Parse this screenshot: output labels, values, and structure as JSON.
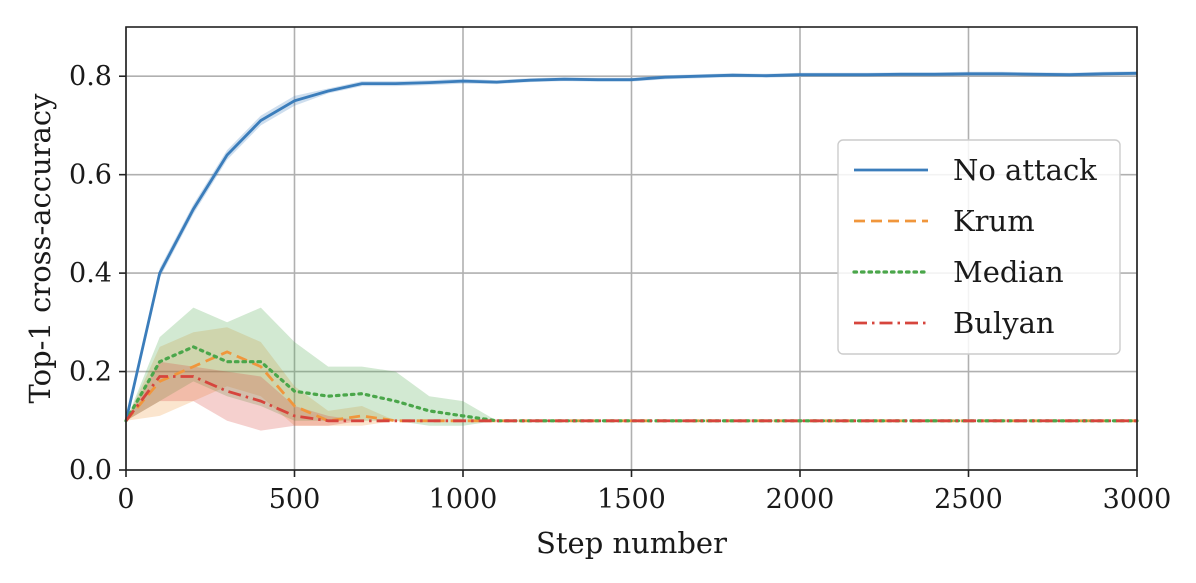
{
  "chart_data": {
    "type": "line",
    "title": "",
    "xlabel": "Step number",
    "ylabel": "Top-1 cross-accuracy",
    "xlim": [
      0,
      3000
    ],
    "ylim": [
      0,
      0.9
    ],
    "x_ticks": [
      0,
      500,
      1000,
      1500,
      2000,
      2500,
      3000
    ],
    "x_tick_labels": [
      "0",
      "500",
      "1000",
      "1500",
      "2000",
      "2500",
      "3000"
    ],
    "y_ticks": [
      0.0,
      0.2,
      0.4,
      0.6,
      0.8
    ],
    "y_tick_labels": [
      "0.0",
      "0.2",
      "0.4",
      "0.6",
      "0.8"
    ],
    "grid": true,
    "legend_position": "center-right",
    "series": [
      {
        "name": "No attack",
        "color": "#3b7dbb",
        "dash": "solid",
        "x": [
          0,
          100,
          200,
          300,
          400,
          500,
          600,
          700,
          800,
          900,
          1000,
          1100,
          1200,
          1300,
          1400,
          1500,
          1600,
          1700,
          1800,
          1900,
          2000,
          2100,
          2200,
          2300,
          2400,
          2500,
          2600,
          2700,
          2800,
          2900,
          3000
        ],
        "y": [
          0.1,
          0.4,
          0.53,
          0.64,
          0.71,
          0.75,
          0.77,
          0.785,
          0.785,
          0.787,
          0.79,
          0.788,
          0.792,
          0.794,
          0.793,
          0.793,
          0.798,
          0.8,
          0.802,
          0.801,
          0.803,
          0.803,
          0.803,
          0.804,
          0.804,
          0.805,
          0.805,
          0.804,
          0.803,
          0.805,
          0.806
        ],
        "lower": [
          0.1,
          0.39,
          0.52,
          0.63,
          0.7,
          0.74,
          0.765,
          0.78,
          0.78,
          0.782,
          0.785,
          0.784,
          0.788,
          0.79,
          0.789,
          0.789,
          0.794,
          0.796,
          0.798,
          0.797,
          0.799,
          0.799,
          0.799,
          0.8,
          0.8,
          0.801,
          0.801,
          0.8,
          0.799,
          0.801,
          0.802
        ],
        "upper": [
          0.1,
          0.41,
          0.54,
          0.65,
          0.72,
          0.76,
          0.775,
          0.79,
          0.79,
          0.792,
          0.795,
          0.792,
          0.796,
          0.798,
          0.797,
          0.797,
          0.802,
          0.804,
          0.806,
          0.805,
          0.807,
          0.807,
          0.807,
          0.808,
          0.808,
          0.809,
          0.809,
          0.808,
          0.807,
          0.809,
          0.81
        ]
      },
      {
        "name": "Krum",
        "color": "#f0963c",
        "dash": "dashed",
        "x": [
          0,
          100,
          200,
          300,
          400,
          500,
          600,
          700,
          800,
          900,
          1000,
          1100,
          1500,
          2000,
          2500,
          3000
        ],
        "y": [
          0.1,
          0.18,
          0.21,
          0.24,
          0.21,
          0.13,
          0.1,
          0.11,
          0.1,
          0.1,
          0.1,
          0.1,
          0.1,
          0.1,
          0.1,
          0.1
        ],
        "lower": [
          0.1,
          0.11,
          0.14,
          0.17,
          0.15,
          0.09,
          0.09,
          0.09,
          0.1,
          0.1,
          0.1,
          0.1,
          0.1,
          0.1,
          0.1,
          0.1
        ],
        "upper": [
          0.1,
          0.25,
          0.28,
          0.29,
          0.26,
          0.17,
          0.12,
          0.13,
          0.1,
          0.1,
          0.1,
          0.1,
          0.1,
          0.1,
          0.1,
          0.1
        ]
      },
      {
        "name": "Median",
        "color": "#4aa64a",
        "dash": "dotted",
        "x": [
          0,
          100,
          200,
          300,
          400,
          500,
          600,
          700,
          800,
          900,
          1000,
          1100,
          1500,
          2000,
          2500,
          3000
        ],
        "y": [
          0.1,
          0.22,
          0.25,
          0.22,
          0.22,
          0.16,
          0.15,
          0.155,
          0.14,
          0.12,
          0.11,
          0.1,
          0.1,
          0.1,
          0.1,
          0.1
        ],
        "lower": [
          0.1,
          0.14,
          0.18,
          0.15,
          0.13,
          0.1,
          0.1,
          0.1,
          0.1,
          0.09,
          0.09,
          0.1,
          0.1,
          0.1,
          0.1,
          0.1
        ],
        "upper": [
          0.1,
          0.27,
          0.33,
          0.3,
          0.33,
          0.26,
          0.21,
          0.21,
          0.2,
          0.15,
          0.14,
          0.1,
          0.1,
          0.1,
          0.1,
          0.1
        ]
      },
      {
        "name": "Bulyan",
        "color": "#d6453d",
        "dash": "dashdot",
        "x": [
          0,
          100,
          200,
          300,
          400,
          500,
          600,
          700,
          800,
          900,
          1000,
          1100,
          1500,
          2000,
          2500,
          3000
        ],
        "y": [
          0.1,
          0.19,
          0.19,
          0.16,
          0.14,
          0.11,
          0.1,
          0.1,
          0.1,
          0.1,
          0.1,
          0.1,
          0.1,
          0.1,
          0.1,
          0.1
        ],
        "lower": [
          0.1,
          0.14,
          0.14,
          0.1,
          0.08,
          0.09,
          0.09,
          0.1,
          0.1,
          0.1,
          0.1,
          0.1,
          0.1,
          0.1,
          0.1,
          0.1
        ],
        "upper": [
          0.1,
          0.22,
          0.21,
          0.2,
          0.19,
          0.13,
          0.11,
          0.1,
          0.1,
          0.1,
          0.1,
          0.1,
          0.1,
          0.1,
          0.1,
          0.1
        ]
      }
    ]
  }
}
